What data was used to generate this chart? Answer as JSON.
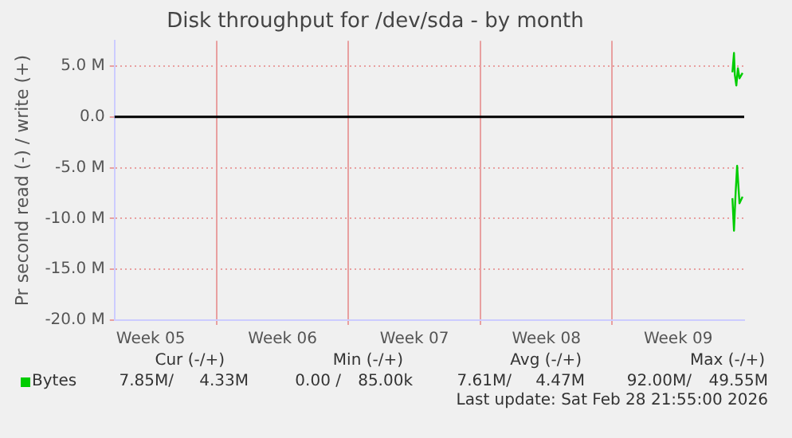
{
  "chart_data": {
    "type": "line",
    "title": "Disk throughput for /dev/sda - by month",
    "ylabel": "Pr second read (-) / write (+)",
    "xlim": [
      "2026-01-26T14:00",
      "2026-03-01T00:00"
    ],
    "xticks": [
      {
        "value": "2026-01-28T12:00",
        "label": "Week 05"
      },
      {
        "value": "2026-02-01T00:00",
        "label": null
      },
      {
        "value": "2026-02-04T12:00",
        "label": "Week 06"
      },
      {
        "value": "2026-02-08T00:00",
        "label": null
      },
      {
        "value": "2026-02-11T12:00",
        "label": "Week 07"
      },
      {
        "value": "2026-02-15T00:00",
        "label": null
      },
      {
        "value": "2026-02-18T12:00",
        "label": "Week 08"
      },
      {
        "value": "2026-02-22T00:00",
        "label": null
      },
      {
        "value": "2026-02-25T12:00",
        "label": "Week 09"
      }
    ],
    "ylim": [
      -20,
      7.5
    ],
    "yticks": [
      {
        "value": -20,
        "label": "-20.0 M"
      },
      {
        "value": -15,
        "label": "-15.0 M"
      },
      {
        "value": -10,
        "label": "-10.0 M"
      },
      {
        "value": -5,
        "label": "-5.0 M"
      },
      {
        "value": 0,
        "label": "0.0"
      },
      {
        "value": 5,
        "label": "5.0 M"
      }
    ],
    "grid": true,
    "legend": "bottom left",
    "marker": "none",
    "line_style": "solid",
    "ref_lines": [
      {
        "axis": "y",
        "value": 0,
        "color": "#000000"
      }
    ],
    "series": [
      {
        "name": "Bytes",
        "color": "#00cc00",
        "x": [
          "2026-02-28T09:00",
          "2026-02-28T11:00",
          "2026-02-28T12:00",
          "2026-02-28T14:00",
          "2026-02-28T16:00",
          "2026-02-28T18:00",
          "2026-02-28T21:55"
        ],
        "values": [
          4.4,
          6.3,
          4.2,
          3.1,
          4.8,
          3.8,
          4.33
        ]
      },
      {
        "color": "#00cc00",
        "x": [
          "2026-02-28T09:00",
          "2026-02-28T11:00",
          "2026-02-28T13:00",
          "2026-02-28T15:00",
          "2026-02-28T18:00",
          "2026-02-28T21:55"
        ],
        "values": [
          -8.0,
          -11.2,
          -7.6,
          -4.8,
          -8.5,
          -7.85
        ]
      }
    ],
    "annotations": [
      "Cur (-/+)",
      "Min (-/+)",
      "Avg (-/+)",
      "Max (-/+)",
      "7.85M/",
      "4.33M",
      "0.00 /",
      "85.00k",
      "7.61M/",
      "4.47M",
      "92.00M/",
      "49.55M",
      "Last update: Sat Feb 28 21:55:00 2026"
    ]
  }
}
